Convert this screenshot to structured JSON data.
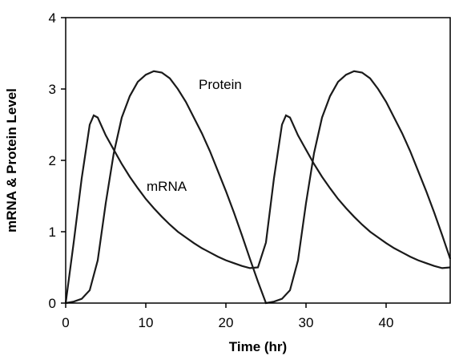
{
  "chart_data": {
    "type": "line",
    "title": "",
    "xlabel": "Time (hr)",
    "ylabel": "mRNA & Protein Level",
    "xlim": [
      0,
      48
    ],
    "ylim": [
      0,
      4
    ],
    "xticks": [
      "0",
      "10",
      "20",
      "30",
      "40"
    ],
    "yticks": [
      "0",
      "1",
      "2",
      "3",
      "4"
    ],
    "grid": false,
    "legend": "none",
    "series": [
      {
        "name": "Protein",
        "x": [
          0,
          1,
          2,
          3,
          4,
          5,
          6,
          7,
          8,
          9,
          10,
          11,
          12,
          13,
          14,
          15,
          16,
          17,
          18,
          19,
          20,
          21,
          22,
          23,
          24,
          25,
          26,
          27,
          28,
          29,
          30,
          31,
          32,
          33,
          34,
          35,
          36,
          37,
          38,
          39,
          40,
          41,
          42,
          43,
          44,
          45,
          46,
          47,
          48
        ],
        "y": [
          0.0,
          0.02,
          0.06,
          0.18,
          0.6,
          1.4,
          2.1,
          2.6,
          2.9,
          3.1,
          3.2,
          3.25,
          3.23,
          3.15,
          3.0,
          2.82,
          2.6,
          2.38,
          2.13,
          1.85,
          1.57,
          1.27,
          0.95,
          0.62,
          0.3,
          0.0,
          0.02,
          0.06,
          0.18,
          0.6,
          1.4,
          2.1,
          2.6,
          2.9,
          3.1,
          3.2,
          3.25,
          3.23,
          3.15,
          3.0,
          2.82,
          2.6,
          2.38,
          2.13,
          1.85,
          1.57,
          1.27,
          0.95,
          0.62
        ]
      },
      {
        "name": "mRNA",
        "x": [
          0,
          1,
          2,
          3,
          3.5,
          4,
          5,
          6,
          7,
          8,
          9,
          10,
          11,
          12,
          13,
          14,
          15,
          16,
          17,
          18,
          19,
          20,
          21,
          22,
          23,
          24,
          25,
          26,
          27,
          27.5,
          28,
          29,
          30,
          31,
          32,
          33,
          34,
          35,
          36,
          37,
          38,
          39,
          40,
          41,
          42,
          43,
          44,
          45,
          46,
          47,
          48
        ],
        "y": [
          0.0,
          0.85,
          1.75,
          2.5,
          2.63,
          2.6,
          2.35,
          2.15,
          1.95,
          1.77,
          1.61,
          1.46,
          1.33,
          1.21,
          1.1,
          1.0,
          0.92,
          0.84,
          0.77,
          0.71,
          0.65,
          0.6,
          0.56,
          0.52,
          0.49,
          0.5,
          0.85,
          1.75,
          2.5,
          2.63,
          2.6,
          2.35,
          2.15,
          1.95,
          1.77,
          1.61,
          1.46,
          1.33,
          1.21,
          1.1,
          1.0,
          0.92,
          0.84,
          0.77,
          0.71,
          0.65,
          0.6,
          0.56,
          0.52,
          0.49,
          0.5
        ]
      }
    ]
  }
}
